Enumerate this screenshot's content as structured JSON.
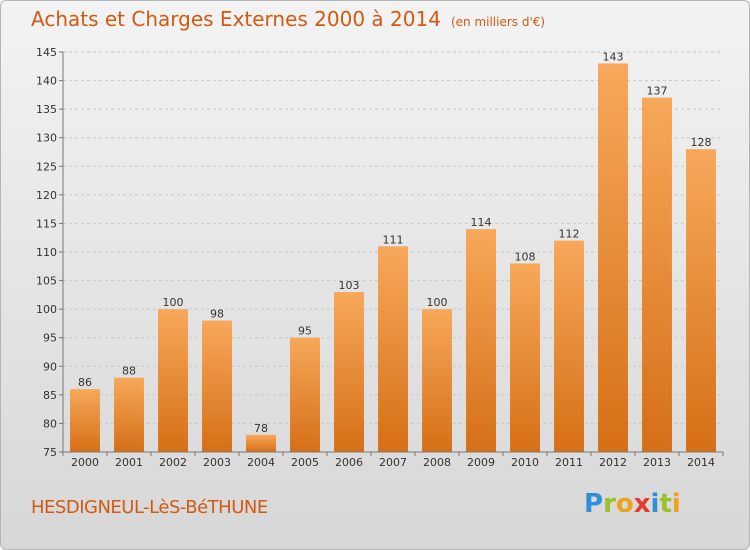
{
  "title": "Achats et Charges Externes 2000 à 2014",
  "unit": "(en milliers d'€)",
  "commune": "HESDIGNEUL-LèS-BéTHUNE",
  "logo": {
    "letters": [
      "P",
      "r",
      "o",
      "x",
      "i",
      "t",
      "i"
    ],
    "colors": [
      "#2f8fd8",
      "#9ac125",
      "#f0a21b",
      "#e63a2f",
      "#2f8fd8",
      "#9ac125",
      "#f0a21b"
    ]
  },
  "colors": {
    "bar_light": "#f7a85a",
    "bar_dark": "#d66f16",
    "text_accent": "#d25a12"
  },
  "chart_data": {
    "type": "bar",
    "categories": [
      "2000",
      "2001",
      "2002",
      "2003",
      "2004",
      "2005",
      "2006",
      "2007",
      "2008",
      "2009",
      "2010",
      "2011",
      "2012",
      "2013",
      "2014"
    ],
    "values": [
      86,
      88,
      100,
      98,
      78,
      95,
      103,
      111,
      100,
      114,
      108,
      112,
      143,
      137,
      128
    ],
    "ylim": [
      75,
      145
    ],
    "yticks": [
      75,
      80,
      85,
      90,
      95,
      100,
      105,
      110,
      115,
      120,
      125,
      130,
      135,
      140,
      145
    ],
    "grid": true
  }
}
